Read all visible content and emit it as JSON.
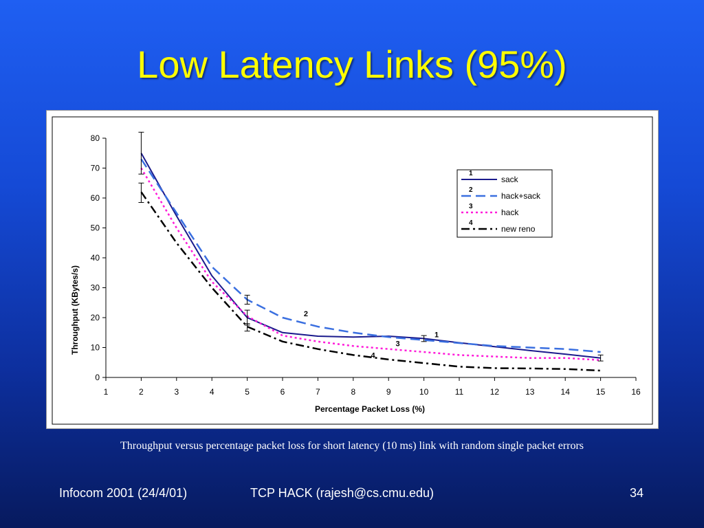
{
  "slide": {
    "title": "Low Latency Links (95%)",
    "caption": "Throughput versus percentage packet loss for short latency (10 ms) link with random single packet errors",
    "footer_left": "Infocom 2001 (24/4/01)",
    "footer_center": "TCP HACK (rajesh@cs.cmu.edu)",
    "footer_right": "34",
    "title_color": "#ffff00"
  },
  "chart_data": {
    "type": "line",
    "title": "",
    "xlabel": "Percentage Packet Loss (%)",
    "ylabel": "Throughput (KBytes/s)",
    "xlim": [
      1,
      16
    ],
    "ylim": [
      0,
      80
    ],
    "xticks": [
      1,
      2,
      3,
      4,
      5,
      6,
      7,
      8,
      9,
      10,
      11,
      12,
      13,
      14,
      15,
      16
    ],
    "yticks": [
      0,
      10,
      20,
      30,
      40,
      50,
      60,
      70,
      80
    ],
    "grid": false,
    "legend_position": "top-right",
    "x": [
      2,
      3,
      4,
      5,
      6,
      7,
      8,
      9,
      10,
      11,
      12,
      13,
      14,
      15
    ],
    "series": [
      {
        "name": "sack",
        "number_label": "1",
        "color": "#1a1a8c",
        "dash": "solid",
        "values": [
          75,
          54,
          34,
          20,
          15,
          13.8,
          13.5,
          13.8,
          13,
          11.6,
          10.3,
          9,
          7.8,
          6.5
        ],
        "error_bars": [
          {
            "x": 2,
            "low": 68,
            "high": 82
          },
          {
            "x": 5,
            "low": 17.5,
            "high": 22.5
          },
          {
            "x": 10,
            "low": 12,
            "high": 14
          },
          {
            "x": 15,
            "low": 5.5,
            "high": 7.5
          }
        ],
        "label_at": {
          "x": 10.3,
          "y": 13.5
        }
      },
      {
        "name": "hack+sack",
        "number_label": "2",
        "color": "#3a6fe0",
        "dash": "long-dash",
        "values": [
          73,
          55,
          37,
          26,
          20,
          17,
          15,
          13.5,
          12.5,
          11.5,
          10.5,
          10,
          9.5,
          8.5
        ],
        "error_bars": [
          {
            "x": 5,
            "low": 24.5,
            "high": 27.5
          }
        ],
        "label_at": {
          "x": 6.6,
          "y": 20.5
        }
      },
      {
        "name": "hack",
        "number_label": "3",
        "color": "#ff1ad9",
        "dash": "dotted",
        "values": [
          70,
          50,
          32,
          20.5,
          14,
          12,
          10.5,
          9.5,
          8.5,
          7.5,
          7,
          6.5,
          6.5,
          5.8
        ],
        "error_bars": [],
        "label_at": {
          "x": 9.2,
          "y": 10.5
        }
      },
      {
        "name": "new reno",
        "number_label": "4",
        "color": "#000000",
        "dash": "dash-dot",
        "values": [
          62,
          45,
          30,
          17,
          12,
          9.5,
          7.5,
          6,
          4.8,
          3.6,
          3.1,
          3,
          2.8,
          2.3
        ],
        "error_bars": [
          {
            "x": 2,
            "low": 58.5,
            "high": 65
          },
          {
            "x": 5,
            "low": 15.5,
            "high": 18
          }
        ],
        "label_at": {
          "x": 8.5,
          "y": 6.5
        }
      }
    ]
  }
}
